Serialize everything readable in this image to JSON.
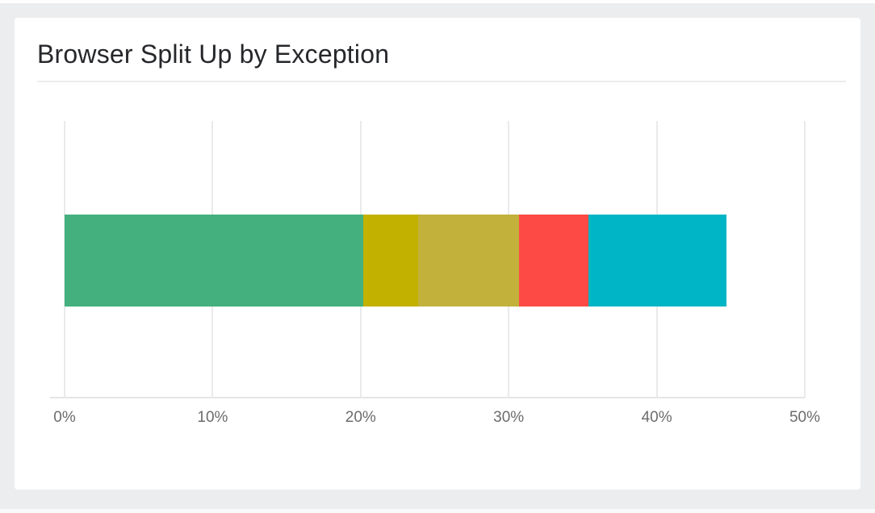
{
  "page": {
    "background_color": "#ECEDEF",
    "card_background_color": "#FFFFFF"
  },
  "card": {
    "title": "Browser Split Up by Exception",
    "title_color": "#26272A",
    "divider_color": "#ECECEC"
  },
  "chart_data": {
    "type": "bar",
    "orientation": "horizontal",
    "stacked": true,
    "title": "Browser Split Up by Exception",
    "xlabel": "",
    "ylabel": "",
    "xlim": [
      0,
      50
    ],
    "x_ticks": [
      "0%",
      "10%",
      "20%",
      "30%",
      "40%",
      "50%"
    ],
    "grid": true,
    "legend": "none",
    "tick_label_color": "#6B6C6E",
    "gridline_color": "#E9EAEB",
    "axis_line_color": "#E4E5E6",
    "total_percent": 44.7,
    "series": [
      {
        "name": "green",
        "value": 20.2,
        "color": "#44B07E"
      },
      {
        "name": "dark-yellow",
        "value": 3.7,
        "color": "#C3B100"
      },
      {
        "name": "yellow",
        "value": 6.8,
        "color": "#C2B13B"
      },
      {
        "name": "red",
        "value": 4.7,
        "color": "#FD4A45"
      },
      {
        "name": "teal",
        "value": 9.3,
        "color": "#00B5C5"
      }
    ]
  }
}
